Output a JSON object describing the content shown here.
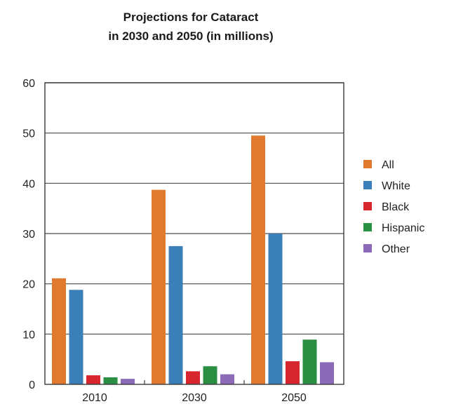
{
  "chart_data": {
    "type": "bar",
    "title": [
      "Projections for Cataract",
      "in 2030 and 2050 (in millions)"
    ],
    "xlabel": "",
    "ylabel": "",
    "categories": [
      "2010",
      "2030",
      "2050"
    ],
    "ylim": [
      0,
      60
    ],
    "yticks": [
      "0",
      "10",
      "20",
      "30",
      "40",
      "50",
      "60"
    ],
    "grid": true,
    "legend_position": "right",
    "series": [
      {
        "name": "All",
        "color": "#E07A2E",
        "values": [
          21.1,
          38.7,
          49.5
        ]
      },
      {
        "name": "White",
        "color": "#3A7FB8",
        "values": [
          18.8,
          27.5,
          30.0
        ]
      },
      {
        "name": "Black",
        "color": "#D8262E",
        "values": [
          1.8,
          2.6,
          4.6
        ]
      },
      {
        "name": "Hispanic",
        "color": "#2A8F43",
        "values": [
          1.4,
          3.6,
          8.9
        ]
      },
      {
        "name": "Other",
        "color": "#8B6BB8",
        "values": [
          1.1,
          2.0,
          4.4
        ]
      }
    ]
  }
}
